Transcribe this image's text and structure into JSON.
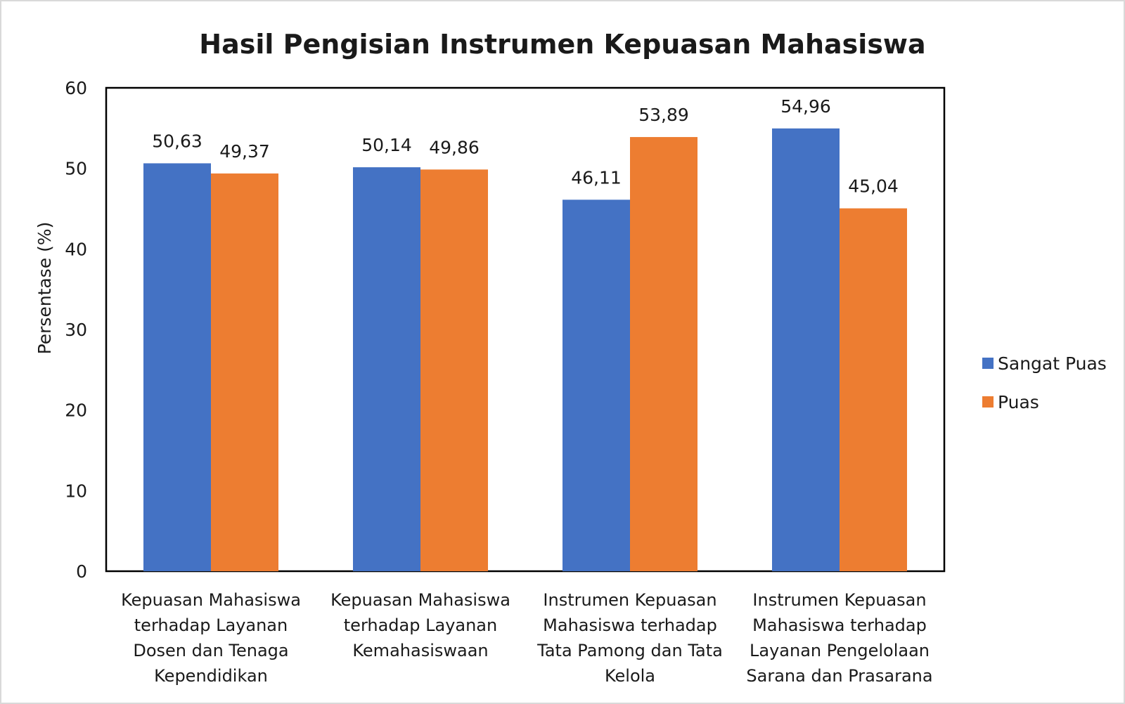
{
  "chart_data": {
    "type": "bar",
    "title": "Hasil Pengisian Instrumen Kepuasan Mahasiswa",
    "xlabel": "",
    "ylabel": "Persentase (%)",
    "ylim": [
      0,
      60
    ],
    "yticks": [
      "0",
      "10",
      "20",
      "30",
      "40",
      "50",
      "60"
    ],
    "categories": [
      "Kepuasan Mahasiswa terhadap Layanan Dosen dan Tenaga Kependidikan",
      "Kepuasan Mahasiswa terhadap Layanan Kemahasiswaan",
      "Instrumen Kepuasan Mahasiswa terhadap Tata Pamong dan Tata Kelola",
      "Instrumen Kepuasan Mahasiswa terhadap Layanan Pengelolaan Sarana dan Prasarana"
    ],
    "category_lines": [
      [
        "Kepuasan Mahasiswa",
        "terhadap Layanan",
        "Dosen dan Tenaga",
        "Kependidikan"
      ],
      [
        "Kepuasan Mahasiswa",
        "terhadap Layanan",
        "Kemahasiswaan"
      ],
      [
        "Instrumen Kepuasan",
        "Mahasiswa terhadap",
        "Tata Pamong dan Tata",
        "Kelola"
      ],
      [
        "Instrumen Kepuasan",
        "Mahasiswa terhadap",
        "Layanan Pengelolaan",
        "Sarana dan Prasarana"
      ]
    ],
    "series": [
      {
        "name": "Sangat Puas",
        "color": "#4472C4",
        "values": [
          50.63,
          50.14,
          46.11,
          54.96
        ],
        "labels": [
          "50,63",
          "50,14",
          "46,11",
          "54,96"
        ]
      },
      {
        "name": "Puas",
        "color": "#ED7D31",
        "values": [
          49.37,
          49.86,
          53.89,
          45.04
        ],
        "labels": [
          "49,37",
          "49,86",
          "53,89",
          "45,04"
        ]
      }
    ],
    "grid": false,
    "legend_position": "right"
  }
}
